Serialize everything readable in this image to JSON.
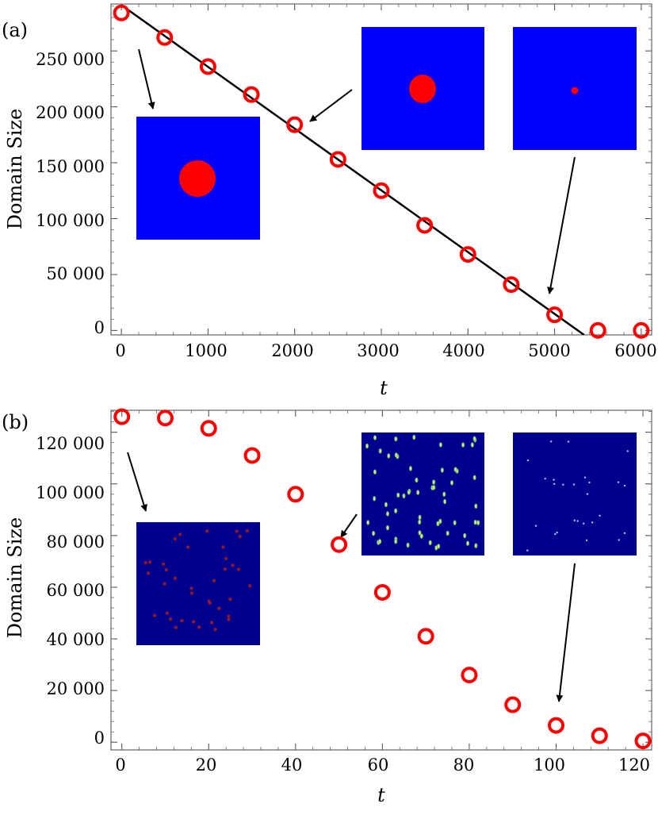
{
  "chart_data": [
    {
      "type": "scatter",
      "panel_label": "(a)",
      "xlabel": "t",
      "ylabel": "Domain Size",
      "xlim": [
        -120,
        6120
      ],
      "ylim": [
        -4000,
        292000
      ],
      "x_ticks": [
        0,
        1000,
        2000,
        3000,
        4000,
        5000,
        6000
      ],
      "x_tick_labels": [
        "0",
        "1000",
        "2000",
        "3000",
        "4000",
        "5000",
        "6000"
      ],
      "y_ticks": [
        0,
        50000,
        100000,
        150000,
        200000,
        250000
      ],
      "y_tick_labels": [
        "0",
        "50 000",
        "100 000",
        "150 000",
        "200 000",
        "250 000"
      ],
      "series": [
        {
          "marker": "open-circle",
          "color": "#ff0000",
          "x": [
            0,
            500,
            1000,
            1500,
            2000,
            2500,
            3000,
            3500,
            4000,
            4500,
            5000,
            5500,
            6000
          ],
          "y": [
            284000,
            262000,
            236000,
            211000,
            184000,
            153000,
            125000,
            94000,
            68000,
            41000,
            14000,
            0,
            0
          ]
        }
      ],
      "fit_line": {
        "x": [
          0,
          5340
        ],
        "y": [
          291000,
          -4000
        ],
        "color": "#000000"
      },
      "insets": [
        {
          "content": "blue square with large red circle",
          "colors": [
            "#0000ff",
            "#ff0000"
          ]
        },
        {
          "content": "blue square with medium red blob",
          "colors": [
            "#0000ff",
            "#ff0000"
          ]
        },
        {
          "content": "blue square with tiny red dot",
          "colors": [
            "#0000ff",
            "#ff0000"
          ]
        }
      ]
    },
    {
      "type": "scatter",
      "panel_label": "(b)",
      "xlabel": "t",
      "ylabel": "Domain Size",
      "xlim": [
        -2.5,
        122
      ],
      "ylim": [
        -3000,
        128500
      ],
      "x_ticks": [
        0,
        20,
        40,
        60,
        80,
        100,
        120
      ],
      "x_tick_labels": [
        "0",
        "20",
        "40",
        "60",
        "80",
        "100",
        "120"
      ],
      "y_ticks": [
        0,
        20000,
        40000,
        60000,
        80000,
        100000,
        120000
      ],
      "y_tick_labels": [
        "0",
        "20 000",
        "40 000",
        "60 000",
        "80 000",
        "100 000",
        "120 000"
      ],
      "series": [
        {
          "marker": "open-circle",
          "color": "#ff0000",
          "x": [
            0,
            10,
            20,
            30,
            40,
            50,
            60,
            70,
            80,
            90,
            100,
            110,
            120
          ],
          "y": [
            126000,
            125500,
            121500,
            111000,
            96000,
            76500,
            58000,
            41000,
            26000,
            14500,
            6500,
            2500,
            500
          ]
        }
      ],
      "insets": [
        {
          "content": "dark blue square with small scattered red spots",
          "colors": [
            "#00008f",
            "#8a1a2a"
          ]
        },
        {
          "content": "dark blue square with many yellow-green elongated spots",
          "colors": [
            "#00008f",
            "#e8e060"
          ]
        },
        {
          "content": "dark blue square with faint light-blue dots",
          "colors": [
            "#00008f",
            "#9ad0ff"
          ]
        }
      ]
    }
  ]
}
